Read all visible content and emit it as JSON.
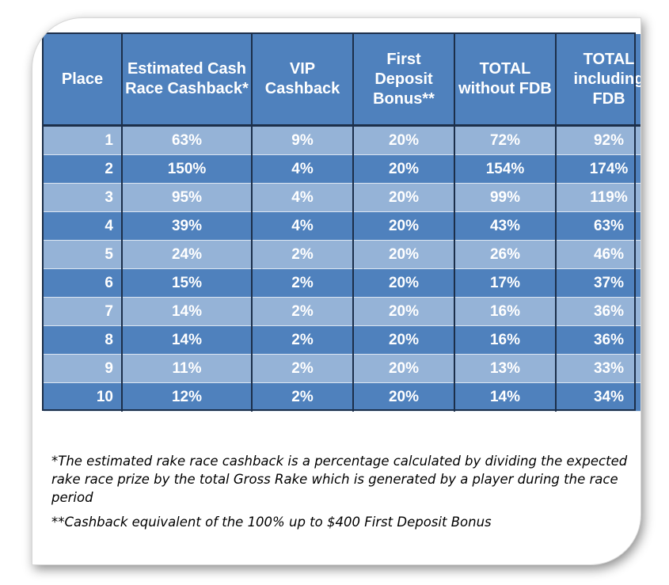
{
  "table": {
    "columns": [
      "Place",
      "Estimated Cash Race Cashback*",
      "VIP Cashback",
      "First Deposit Bonus**",
      "TOTAL without FDB",
      "TOTAL including FDB"
    ],
    "rows": [
      [
        "1",
        "63%",
        "9%",
        "20%",
        "72%",
        "92%"
      ],
      [
        "2",
        "150%",
        "4%",
        "20%",
        "154%",
        "174%"
      ],
      [
        "3",
        "95%",
        "4%",
        "20%",
        "99%",
        "119%"
      ],
      [
        "4",
        "39%",
        "4%",
        "20%",
        "43%",
        "63%"
      ],
      [
        "5",
        "24%",
        "2%",
        "20%",
        "26%",
        "46%"
      ],
      [
        "6",
        "15%",
        "2%",
        "20%",
        "17%",
        "37%"
      ],
      [
        "7",
        "14%",
        "2%",
        "20%",
        "16%",
        "36%"
      ],
      [
        "8",
        "14%",
        "2%",
        "20%",
        "16%",
        "36%"
      ],
      [
        "9",
        "11%",
        "2%",
        "20%",
        "13%",
        "33%"
      ],
      [
        "10",
        "12%",
        "2%",
        "20%",
        "14%",
        "34%"
      ]
    ]
  },
  "notes": {
    "footnote_1": "*The estimated rake race cashback is a percentage calculated by dividing the expected rake race prize by the total Gross Rake which is generated by a player during the race period",
    "footnote_2": "**Cashback equivalent of the 100% up to $400 First Deposit Bonus"
  },
  "colors": {
    "header_blue": "#4f81bd",
    "row_light": "#95b3d7",
    "row_dark": "#4f81bd",
    "border_navy": "#1c2f4a"
  }
}
